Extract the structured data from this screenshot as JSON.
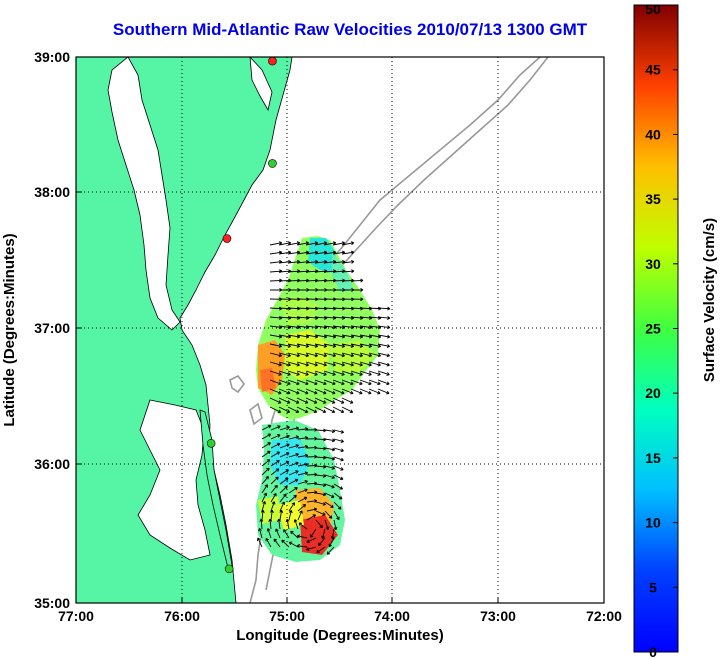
{
  "map": {
    "title": "Southern Mid-Atlantic Raw Velocities 2010/07/13 1300 GMT",
    "xlabel": "Longitude (Degrees:Minutes)",
    "ylabel": "Latitude (Degrees:Minutes)",
    "x_ticks": [
      "77:00",
      "76:00",
      "75:00",
      "74:00",
      "73:00",
      "72:00"
    ],
    "y_ticks": [
      "39:00",
      "38:00",
      "37:00",
      "36:00",
      "35:00"
    ],
    "lon_range": [
      -77,
      -72
    ],
    "lat_range": [
      35,
      39
    ],
    "land_color": "#55f5a5",
    "contour_color": "#999999",
    "grid": "dotted",
    "stations": [
      {
        "lon": -75.14,
        "lat": 38.97,
        "status": "red"
      },
      {
        "lon": -75.14,
        "lat": 38.22,
        "status": "green"
      },
      {
        "lon": -75.57,
        "lat": 37.67,
        "status": "red"
      },
      {
        "lon": -75.72,
        "lat": 36.17,
        "status": "green"
      },
      {
        "lon": -75.55,
        "lat": 35.25,
        "status": "green"
      }
    ]
  },
  "colorbar": {
    "label": "Surface Velocity (cm/s)",
    "ticks": [
      "0",
      "5",
      "10",
      "15",
      "20",
      "25",
      "30",
      "35",
      "40",
      "45",
      "50"
    ],
    "min": 0,
    "max": 50,
    "colormap": "jet"
  }
}
